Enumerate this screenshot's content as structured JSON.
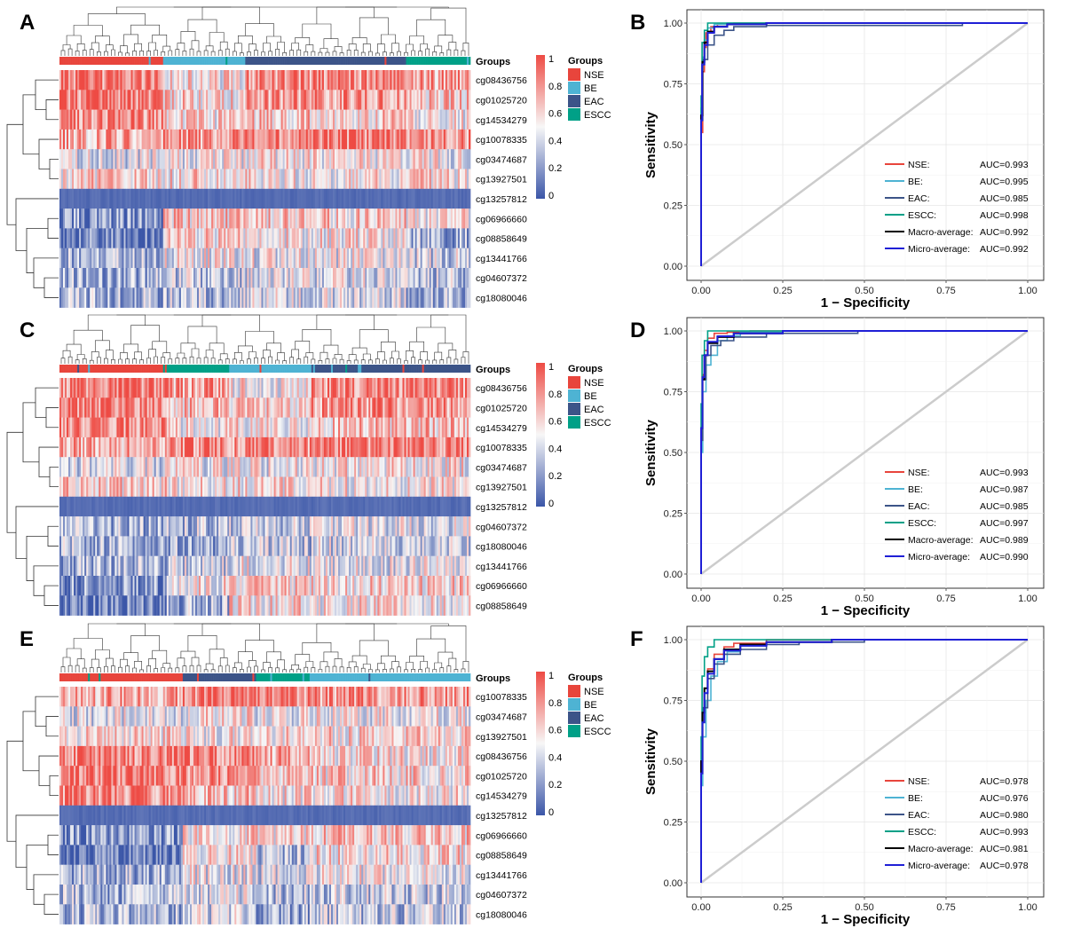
{
  "colors": {
    "NSE": "#e8453c",
    "BE": "#4eb3d3",
    "EAC": "#3c5488",
    "ESCC": "#00a087",
    "macro": "#000000",
    "micro": "#1f1fd6",
    "heat_low": "#3b56a8",
    "heat_mid": "#f7f7f7",
    "heat_high": "#ee4b44",
    "diagonal": "#cccccc"
  },
  "heatmap_panels": [
    {
      "letter": "A",
      "groups_label": "Groups",
      "rows": [
        "cg08436756",
        "cg01025720",
        "cg14534279",
        "cg10078335",
        "cg03474687",
        "cg13927501",
        "cg13257812",
        "cg06966660",
        "cg08858649",
        "cg13441766",
        "cg04607372",
        "cg18080046"
      ],
      "group_blocks": [
        [
          "NSE",
          0.25
        ],
        [
          "BE",
          0.2
        ],
        [
          "EAC",
          0.39
        ],
        [
          "ESCC",
          0.16
        ]
      ]
    },
    {
      "letter": "C",
      "groups_label": "Groups",
      "rows": [
        "cg08436756",
        "cg01025720",
        "cg14534279",
        "cg10078335",
        "cg03474687",
        "cg13927501",
        "cg13257812",
        "cg04607372",
        "cg18080046",
        "cg13441766",
        "cg06966660",
        "cg08858649"
      ],
      "group_blocks": [
        [
          "NSE",
          0.26
        ],
        [
          "ESCC",
          0.15
        ],
        [
          "BE",
          0.2
        ],
        [
          "EAC",
          0.39
        ]
      ]
    },
    {
      "letter": "E",
      "groups_label": "Groups",
      "rows": [
        "cg10078335",
        "cg03474687",
        "cg13927501",
        "cg08436756",
        "cg01025720",
        "cg14534279",
        "cg13257812",
        "cg06966660",
        "cg08858649",
        "cg13441766",
        "cg04607372",
        "cg18080046"
      ],
      "group_blocks": [
        [
          "NSE",
          0.3
        ],
        [
          "EAC",
          0.18
        ],
        [
          "ESCC",
          0.13
        ],
        [
          "BE",
          0.39
        ]
      ]
    }
  ],
  "heat_legend": {
    "ticks": [
      "1",
      "0.8",
      "0.6",
      "0.4",
      "0.2",
      "0"
    ],
    "groups_title": "Groups",
    "groups": [
      "NSE",
      "BE",
      "EAC",
      "ESCC"
    ]
  },
  "chart_data": [
    {
      "type": "line",
      "panel": "B",
      "xlabel": "1 − Specificity",
      "ylabel": "Sensitivity",
      "xlim": [
        0,
        1
      ],
      "ylim": [
        0,
        1
      ],
      "x_ticks": [
        "0.00",
        "0.25",
        "0.50",
        "0.75",
        "1.00"
      ],
      "y_ticks": [
        "0.00",
        "0.25",
        "0.50",
        "0.75",
        "1.00"
      ],
      "grid": true,
      "legend_position": "bottom-right",
      "series": [
        {
          "name": "NSE:",
          "auc": "AUC=0.993",
          "color": "#e8453c",
          "points": [
            [
              0,
              0
            ],
            [
              0.005,
              0.55
            ],
            [
              0.01,
              0.8
            ],
            [
              0.015,
              0.9
            ],
            [
              0.03,
              0.96
            ],
            [
              0.05,
              0.985
            ],
            [
              0.1,
              0.995
            ],
            [
              1,
              1
            ]
          ]
        },
        {
          "name": "BE:",
          "auc": "AUC=0.995",
          "color": "#4eb3d3",
          "points": [
            [
              0,
              0
            ],
            [
              0.004,
              0.65
            ],
            [
              0.01,
              0.86
            ],
            [
              0.02,
              0.93
            ],
            [
              0.04,
              0.98
            ],
            [
              0.08,
              0.995
            ],
            [
              1,
              1
            ]
          ]
        },
        {
          "name": "EAC:",
          "auc": "AUC=0.985",
          "color": "#3c5488",
          "points": [
            [
              0,
              0
            ],
            [
              0.005,
              0.6
            ],
            [
              0.02,
              0.85
            ],
            [
              0.04,
              0.91
            ],
            [
              0.07,
              0.95
            ],
            [
              0.1,
              0.97
            ],
            [
              0.2,
              0.985
            ],
            [
              0.45,
              0.99
            ],
            [
              0.8,
              0.99
            ],
            [
              1,
              1
            ]
          ]
        },
        {
          "name": "ESCC:",
          "auc": "AUC=0.998",
          "color": "#00a087",
          "points": [
            [
              0,
              0
            ],
            [
              0.003,
              0.7
            ],
            [
              0.01,
              0.92
            ],
            [
              0.02,
              0.97
            ],
            [
              0.04,
              1
            ],
            [
              1,
              1
            ]
          ]
        },
        {
          "name": "Macro-average:",
          "auc": "AUC=0.992",
          "color": "#000000",
          "points": [
            [
              0,
              0
            ],
            [
              0.004,
              0.62
            ],
            [
              0.01,
              0.84
            ],
            [
              0.02,
              0.92
            ],
            [
              0.04,
              0.965
            ],
            [
              0.08,
              0.985
            ],
            [
              0.2,
              0.995
            ],
            [
              1,
              1
            ]
          ]
        },
        {
          "name": "Micro-average:",
          "auc": "AUC=0.992",
          "color": "#1f1fd6",
          "points": [
            [
              0,
              0
            ],
            [
              0.003,
              0.6
            ],
            [
              0.01,
              0.83
            ],
            [
              0.02,
              0.91
            ],
            [
              0.04,
              0.96
            ],
            [
              0.08,
              0.985
            ],
            [
              0.2,
              0.995
            ],
            [
              1,
              1
            ]
          ]
        }
      ]
    },
    {
      "type": "line",
      "panel": "D",
      "xlabel": "1 − Specificity",
      "ylabel": "Sensitivity",
      "xlim": [
        0,
        1
      ],
      "ylim": [
        0,
        1
      ],
      "x_ticks": [
        "0.00",
        "0.25",
        "0.50",
        "0.75",
        "1.00"
      ],
      "y_ticks": [
        "0.00",
        "0.25",
        "0.50",
        "0.75",
        "1.00"
      ],
      "grid": true,
      "legend_position": "bottom-right",
      "series": [
        {
          "name": "NSE:",
          "auc": "AUC=0.993",
          "color": "#e8453c",
          "points": [
            [
              0,
              0
            ],
            [
              0.005,
              0.6
            ],
            [
              0.01,
              0.82
            ],
            [
              0.02,
              0.92
            ],
            [
              0.04,
              0.97
            ],
            [
              0.08,
              0.99
            ],
            [
              0.15,
              0.995
            ],
            [
              1,
              1
            ]
          ]
        },
        {
          "name": "BE:",
          "auc": "AUC=0.987",
          "color": "#4eb3d3",
          "points": [
            [
              0,
              0
            ],
            [
              0.005,
              0.5
            ],
            [
              0.015,
              0.75
            ],
            [
              0.03,
              0.86
            ],
            [
              0.05,
              0.9
            ],
            [
              0.08,
              0.96
            ],
            [
              0.12,
              0.98
            ],
            [
              0.25,
              0.995
            ],
            [
              1,
              1
            ]
          ]
        },
        {
          "name": "EAC:",
          "auc": "AUC=0.985",
          "color": "#3c5488",
          "points": [
            [
              0,
              0
            ],
            [
              0.005,
              0.55
            ],
            [
              0.015,
              0.8
            ],
            [
              0.03,
              0.9
            ],
            [
              0.06,
              0.94
            ],
            [
              0.1,
              0.96
            ],
            [
              0.2,
              0.975
            ],
            [
              0.48,
              0.99
            ],
            [
              1,
              1
            ]
          ]
        },
        {
          "name": "ESCC:",
          "auc": "AUC=0.997",
          "color": "#00a087",
          "points": [
            [
              0,
              0
            ],
            [
              0.003,
              0.7
            ],
            [
              0.01,
              0.9
            ],
            [
              0.02,
              0.96
            ],
            [
              0.04,
              1
            ],
            [
              1,
              1
            ]
          ]
        },
        {
          "name": "Macro-average:",
          "auc": "AUC=0.989",
          "color": "#000000",
          "points": [
            [
              0,
              0
            ],
            [
              0.004,
              0.6
            ],
            [
              0.01,
              0.8
            ],
            [
              0.02,
              0.9
            ],
            [
              0.05,
              0.95
            ],
            [
              0.1,
              0.975
            ],
            [
              0.25,
              0.99
            ],
            [
              1,
              1
            ]
          ]
        },
        {
          "name": "Micro-average:",
          "auc": "AUC=0.990",
          "color": "#1f1fd6",
          "points": [
            [
              0,
              0
            ],
            [
              0.004,
              0.6
            ],
            [
              0.01,
              0.81
            ],
            [
              0.02,
              0.9
            ],
            [
              0.05,
              0.955
            ],
            [
              0.1,
              0.978
            ],
            [
              0.25,
              0.99
            ],
            [
              1,
              1
            ]
          ]
        }
      ]
    },
    {
      "type": "line",
      "panel": "F",
      "xlabel": "1 − Specificity",
      "ylabel": "Sensitivity",
      "xlim": [
        0,
        1
      ],
      "ylim": [
        0,
        1
      ],
      "x_ticks": [
        "0.00",
        "0.25",
        "0.50",
        "0.75",
        "1.00"
      ],
      "y_ticks": [
        "0.00",
        "0.25",
        "0.50",
        "0.75",
        "1.00"
      ],
      "grid": true,
      "legend_position": "bottom-right",
      "series": [
        {
          "name": "NSE:",
          "auc": "AUC=0.978",
          "color": "#e8453c",
          "points": [
            [
              0,
              0
            ],
            [
              0.005,
              0.45
            ],
            [
              0.01,
              0.7
            ],
            [
              0.02,
              0.8
            ],
            [
              0.04,
              0.88
            ],
            [
              0.07,
              0.94
            ],
            [
              0.1,
              0.97
            ],
            [
              0.2,
              0.985
            ],
            [
              1,
              1
            ]
          ]
        },
        {
          "name": "BE:",
          "auc": "AUC=0.976",
          "color": "#4eb3d3",
          "points": [
            [
              0,
              0
            ],
            [
              0.005,
              0.4
            ],
            [
              0.015,
              0.6
            ],
            [
              0.03,
              0.75
            ],
            [
              0.05,
              0.85
            ],
            [
              0.08,
              0.91
            ],
            [
              0.12,
              0.95
            ],
            [
              0.2,
              0.975
            ],
            [
              0.4,
              0.99
            ],
            [
              1,
              1
            ]
          ]
        },
        {
          "name": "EAC:",
          "auc": "AUC=0.980",
          "color": "#3c5488",
          "points": [
            [
              0,
              0
            ],
            [
              0.005,
              0.5
            ],
            [
              0.02,
              0.72
            ],
            [
              0.04,
              0.84
            ],
            [
              0.07,
              0.9
            ],
            [
              0.12,
              0.94
            ],
            [
              0.2,
              0.96
            ],
            [
              0.3,
              0.98
            ],
            [
              0.5,
              0.99
            ],
            [
              1,
              1
            ]
          ]
        },
        {
          "name": "ESCC:",
          "auc": "AUC=0.993",
          "color": "#00a087",
          "points": [
            [
              0,
              0
            ],
            [
              0.003,
              0.6
            ],
            [
              0.01,
              0.85
            ],
            [
              0.02,
              0.93
            ],
            [
              0.04,
              0.97
            ],
            [
              0.07,
              1
            ],
            [
              1,
              1
            ]
          ]
        },
        {
          "name": "Macro-average:",
          "auc": "AUC=0.981",
          "color": "#000000",
          "points": [
            [
              0,
              0
            ],
            [
              0.004,
              0.5
            ],
            [
              0.01,
              0.7
            ],
            [
              0.02,
              0.8
            ],
            [
              0.04,
              0.87
            ],
            [
              0.07,
              0.92
            ],
            [
              0.12,
              0.96
            ],
            [
              0.2,
              0.98
            ],
            [
              0.4,
              0.99
            ],
            [
              1,
              1
            ]
          ]
        },
        {
          "name": "Micro-average:",
          "auc": "AUC=0.978",
          "color": "#1f1fd6",
          "points": [
            [
              0,
              0
            ],
            [
              0.004,
              0.45
            ],
            [
              0.01,
              0.66
            ],
            [
              0.02,
              0.78
            ],
            [
              0.04,
              0.86
            ],
            [
              0.07,
              0.92
            ],
            [
              0.12,
              0.955
            ],
            [
              0.2,
              0.975
            ],
            [
              0.4,
              0.99
            ],
            [
              1,
              1
            ]
          ]
        }
      ]
    }
  ]
}
